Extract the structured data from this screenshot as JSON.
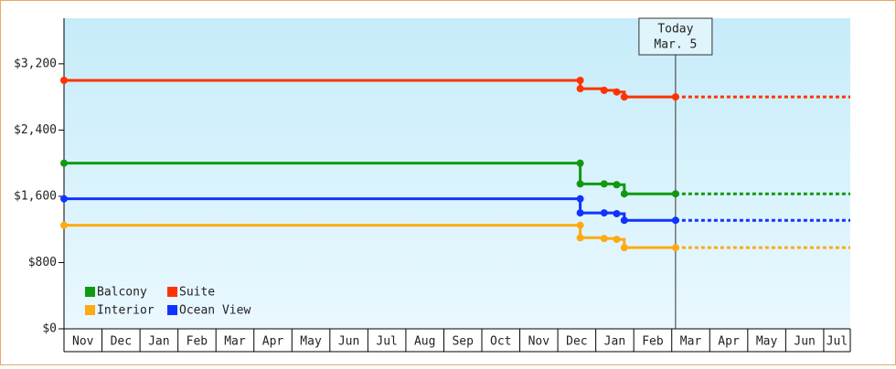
{
  "chart_data": {
    "type": "line",
    "xlim": [
      0,
      20.7
    ],
    "xticks": [
      {
        "value": 0,
        "label": "Nov"
      },
      {
        "value": 1,
        "label": "Dec"
      },
      {
        "value": 2,
        "label": "Jan"
      },
      {
        "value": 3,
        "label": "Feb"
      },
      {
        "value": 4,
        "label": "Mar"
      },
      {
        "value": 5,
        "label": "Apr"
      },
      {
        "value": 6,
        "label": "May"
      },
      {
        "value": 7,
        "label": "Jun"
      },
      {
        "value": 8,
        "label": "Jul"
      },
      {
        "value": 9,
        "label": "Aug"
      },
      {
        "value": 10,
        "label": "Sep"
      },
      {
        "value": 11,
        "label": "Oct"
      },
      {
        "value": 12,
        "label": "Nov"
      },
      {
        "value": 13,
        "label": "Dec"
      },
      {
        "value": 14,
        "label": "Jan"
      },
      {
        "value": 15,
        "label": "Feb"
      },
      {
        "value": 16,
        "label": "Mar"
      },
      {
        "value": 17,
        "label": "Apr"
      },
      {
        "value": 18,
        "label": "May"
      },
      {
        "value": 19,
        "label": "Jun"
      },
      {
        "value": 20,
        "label": "Jul"
      }
    ],
    "ylim": [
      0,
      3750
    ],
    "yticks": [
      {
        "value": 0,
        "label": "$0"
      },
      {
        "value": 800,
        "label": "$800"
      },
      {
        "value": 1600,
        "label": "$1,600"
      },
      {
        "value": 2400,
        "label": "$2,400"
      },
      {
        "value": 3200,
        "label": "$3,200"
      }
    ],
    "x": [
      0,
      13.59,
      13.59,
      14.22,
      14.55,
      14.75,
      16.1
    ],
    "series": [
      {
        "name": "Balcony",
        "color": "#119911",
        "values": [
          2000,
          2000,
          1750,
          1750,
          1740,
          1630,
          1630
        ]
      },
      {
        "name": "Suite",
        "color": "#ff3300",
        "values": [
          3000,
          3000,
          2900,
          2880,
          2860,
          2800,
          2800
        ]
      },
      {
        "name": "Interior",
        "color": "#ffaa11",
        "values": [
          1250,
          1250,
          1100,
          1090,
          1080,
          980,
          980
        ]
      },
      {
        "name": "Ocean View",
        "color": "#1133ff",
        "values": [
          1570,
          1570,
          1400,
          1400,
          1390,
          1310,
          1310
        ]
      }
    ],
    "annotation": {
      "x": 16.1,
      "label": [
        "Today",
        "Mar. 5"
      ]
    }
  }
}
